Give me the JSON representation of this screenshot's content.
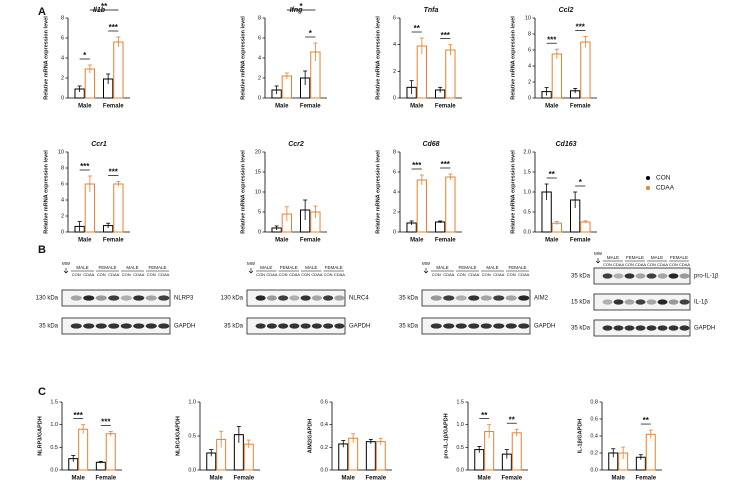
{
  "panel_labels": [
    "A",
    "B",
    "C"
  ],
  "chart_data": [
    {
      "type": "bar",
      "title": "Il1b",
      "italic": true,
      "ylabel": "Relative mRNA expression level",
      "categories": [
        "Male",
        "Female"
      ],
      "ylim": [
        0,
        8
      ],
      "yticks": [
        0,
        2,
        4,
        6,
        8
      ],
      "series": [
        {
          "name": "CON",
          "color": "#000000",
          "values": [
            0.9,
            1.9
          ],
          "errors": [
            0.3,
            0.5
          ]
        },
        {
          "name": "CDAA",
          "color": "#e8802e",
          "values": [
            2.9,
            5.6
          ],
          "errors": [
            0.4,
            0.5
          ]
        }
      ],
      "annotations": [
        "*",
        "***",
        "**"
      ]
    },
    {
      "type": "bar",
      "title": "Ifng",
      "italic": true,
      "ylabel": "Relative mRNA expression level",
      "categories": [
        "Male",
        "Female"
      ],
      "ylim": [
        0,
        8
      ],
      "yticks": [
        0,
        2,
        4,
        6,
        8
      ],
      "series": [
        {
          "name": "CON",
          "color": "#000000",
          "values": [
            0.8,
            2.0
          ],
          "errors": [
            0.4,
            0.7
          ]
        },
        {
          "name": "CDAA",
          "color": "#e8802e",
          "values": [
            2.2,
            4.6
          ],
          "errors": [
            0.3,
            0.9
          ]
        }
      ],
      "annotations": [
        "*",
        "*"
      ]
    },
    {
      "type": "bar",
      "title": "Tnfa",
      "italic": true,
      "ylabel": "Relative mRNA expression level",
      "categories": [
        "Male",
        "Female"
      ],
      "ylim": [
        0,
        6
      ],
      "yticks": [
        0,
        2,
        4,
        6
      ],
      "series": [
        {
          "name": "CON",
          "color": "#000000",
          "values": [
            0.8,
            0.6
          ],
          "errors": [
            0.5,
            0.2
          ]
        },
        {
          "name": "CDAA",
          "color": "#e8802e",
          "values": [
            3.9,
            3.6
          ],
          "errors": [
            0.6,
            0.4
          ]
        }
      ],
      "annotations": [
        "**",
        "***"
      ]
    },
    {
      "type": "bar",
      "title": "Ccl2",
      "italic": true,
      "ylabel": "Relative mRNA expression level",
      "categories": [
        "Male",
        "Female"
      ],
      "ylim": [
        0,
        10
      ],
      "yticks": [
        0,
        2,
        4,
        6,
        8,
        10
      ],
      "series": [
        {
          "name": "CON",
          "color": "#000000",
          "values": [
            0.8,
            0.9
          ],
          "errors": [
            0.5,
            0.3
          ]
        },
        {
          "name": "CDAA",
          "color": "#e8802e",
          "values": [
            5.5,
            7.0
          ],
          "errors": [
            0.6,
            0.7
          ]
        }
      ],
      "annotations": [
        "***",
        "***"
      ]
    },
    {
      "type": "bar",
      "title": "Ccr1",
      "italic": true,
      "ylabel": "Relative mRNA expression level",
      "categories": [
        "Male",
        "Female"
      ],
      "ylim": [
        0,
        10
      ],
      "yticks": [
        0,
        2,
        4,
        6,
        8,
        10
      ],
      "series": [
        {
          "name": "CON",
          "color": "#000000",
          "values": [
            0.7,
            0.8
          ],
          "errors": [
            0.6,
            0.3
          ]
        },
        {
          "name": "CDAA",
          "color": "#e8802e",
          "values": [
            6.0,
            6.0
          ],
          "errors": [
            1.0,
            0.3
          ]
        }
      ],
      "annotations": [
        "***",
        "***"
      ]
    },
    {
      "type": "bar",
      "title": "Ccr2",
      "italic": true,
      "ylabel": "Relative mRNA expression level",
      "categories": [
        "Male",
        "Female"
      ],
      "ylim": [
        0,
        20
      ],
      "yticks": [
        0,
        5,
        10,
        15,
        20
      ],
      "series": [
        {
          "name": "CON",
          "color": "#000000",
          "values": [
            1.0,
            5.5
          ],
          "errors": [
            0.5,
            2.5
          ]
        },
        {
          "name": "CDAA",
          "color": "#e8802e",
          "values": [
            4.5,
            5.0
          ],
          "errors": [
            1.8,
            1.5
          ]
        }
      ],
      "annotations": []
    },
    {
      "type": "bar",
      "title": "Cd68",
      "italic": true,
      "ylabel": "Relative mRNA expression level",
      "categories": [
        "Male",
        "Female"
      ],
      "ylim": [
        0,
        8
      ],
      "yticks": [
        0,
        2,
        4,
        6,
        8
      ],
      "series": [
        {
          "name": "CON",
          "color": "#000000",
          "values": [
            0.9,
            1.0
          ],
          "errors": [
            0.2,
            0.1
          ]
        },
        {
          "name": "CDAA",
          "color": "#e8802e",
          "values": [
            5.2,
            5.5
          ],
          "errors": [
            0.5,
            0.3
          ]
        }
      ],
      "annotations": [
        "***",
        "***"
      ]
    },
    {
      "type": "bar",
      "title": "Cd163",
      "italic": true,
      "ylabel": "Relative mRNA expression level",
      "categories": [
        "Male",
        "Female"
      ],
      "ylim": [
        0,
        2
      ],
      "yticks": [
        {
          "value": 0,
          "label": "0.0"
        },
        0.5,
        {
          "value": 1,
          "label": "1.0"
        },
        1.5,
        {
          "value": 2,
          "label": "2.0"
        }
      ],
      "series": [
        {
          "name": "CON",
          "color": "#000000",
          "values": [
            1.0,
            0.8
          ],
          "errors": [
            0.2,
            0.2
          ]
        },
        {
          "name": "CDAA",
          "color": "#e8802e",
          "values": [
            0.22,
            0.25
          ],
          "errors": [
            0.04,
            0.03
          ]
        }
      ],
      "annotations": [
        "**",
        "*"
      ]
    },
    {
      "type": "bar",
      "title": "",
      "ylabel": "NLRP3/GAPDH",
      "categories": [
        "Male",
        "Female"
      ],
      "ylim": [
        0,
        1.5
      ],
      "yticks": [
        {
          "value": 0,
          "label": "0.0"
        },
        0.5,
        {
          "value": 1,
          "label": "1.0"
        },
        1.5
      ],
      "series": [
        {
          "name": "CON",
          "color": "#000000",
          "values": [
            0.25,
            0.17
          ],
          "errors": [
            0.07,
            0.02
          ]
        },
        {
          "name": "CDAA",
          "color": "#e8802e",
          "values": [
            0.9,
            0.8
          ],
          "errors": [
            0.1,
            0.05
          ]
        }
      ],
      "annotations": [
        "***",
        "***"
      ]
    },
    {
      "type": "bar",
      "title": "",
      "ylabel": "NLRC4/GAPDH",
      "categories": [
        "Male",
        "Female"
      ],
      "ylim": [
        0,
        1
      ],
      "yticks": [
        {
          "value": 0,
          "label": "0.0"
        },
        0.5,
        {
          "value": 1,
          "label": "1.0"
        }
      ],
      "series": [
        {
          "name": "CON",
          "color": "#000000",
          "values": [
            0.25,
            0.52
          ],
          "errors": [
            0.05,
            0.12
          ]
        },
        {
          "name": "CDAA",
          "color": "#e8802e",
          "values": [
            0.45,
            0.38
          ],
          "errors": [
            0.12,
            0.06
          ]
        }
      ],
      "annotations": []
    },
    {
      "type": "bar",
      "title": "",
      "ylabel": "AIM2/GAPDH",
      "categories": [
        "Male",
        "Female"
      ],
      "ylim": [
        0,
        0.6
      ],
      "yticks": [
        {
          "value": 0,
          "label": "0.0"
        },
        0.2,
        0.4,
        0.6
      ],
      "series": [
        {
          "name": "CON",
          "color": "#000000",
          "values": [
            0.23,
            0.25
          ],
          "errors": [
            0.03,
            0.02
          ]
        },
        {
          "name": "CDAA",
          "color": "#e8802e",
          "values": [
            0.28,
            0.25
          ],
          "errors": [
            0.04,
            0.03
          ]
        }
      ],
      "annotations": []
    },
    {
      "type": "bar",
      "title": "",
      "ylabel": "pro-IL-1β/GAPDH",
      "categories": [
        "Male",
        "Female"
      ],
      "ylim": [
        0,
        1.5
      ],
      "yticks": [
        {
          "value": 0,
          "label": "0.0"
        },
        0.5,
        {
          "value": 1,
          "label": "1.0"
        },
        1.5
      ],
      "series": [
        {
          "name": "CON",
          "color": "#000000",
          "values": [
            0.45,
            0.35
          ],
          "errors": [
            0.07,
            0.1
          ]
        },
        {
          "name": "CDAA",
          "color": "#e8802e",
          "values": [
            0.85,
            0.82
          ],
          "errors": [
            0.15,
            0.08
          ]
        }
      ],
      "annotations": [
        "**",
        "**"
      ]
    },
    {
      "type": "bar",
      "title": "",
      "ylabel": "IL-1β/GAPDH",
      "categories": [
        "Male",
        "Female"
      ],
      "ylim": [
        0,
        0.8
      ],
      "yticks": [
        {
          "value": 0,
          "label": "0.0"
        },
        0.2,
        0.4,
        0.6,
        0.8
      ],
      "series": [
        {
          "name": "CON",
          "color": "#000000",
          "values": [
            0.2,
            0.15
          ],
          "errors": [
            0.05,
            0.03
          ]
        },
        {
          "name": "CDAA",
          "color": "#e8802e",
          "values": [
            0.2,
            0.42
          ],
          "errors": [
            0.07,
            0.05
          ]
        }
      ],
      "annotations": [
        "**"
      ]
    }
  ],
  "blots": [
    {
      "mw": "MW",
      "groups": [
        "MALE",
        "FEMALE",
        "MALE",
        "FEMALE"
      ],
      "lanes": [
        "CON",
        "CDAA",
        "CON",
        "CDAA",
        "CON",
        "CDAA",
        "CON",
        "CDAA"
      ],
      "rows": [
        {
          "kda": "130 kDa",
          "protein": "NLRP3"
        },
        {
          "kda": "35 kDa",
          "protein": "GAPDH"
        }
      ]
    },
    {
      "mw": "MW",
      "groups": [
        "MALE",
        "FEMALE",
        "MALE",
        "FEMALE"
      ],
      "lanes": [
        "CON",
        "CDAA",
        "CON",
        "CDAA",
        "CON",
        "CDAA",
        "CON",
        "CDAA"
      ],
      "rows": [
        {
          "kda": "130 kDa",
          "protein": "NLRC4"
        },
        {
          "kda": "35 kDa",
          "protein": "GAPDH"
        }
      ]
    },
    {
      "mw": "MW",
      "groups": [
        "MALE",
        "FEMALE",
        "MALE",
        "FEMALE"
      ],
      "lanes": [
        "CON",
        "CDAA",
        "CON",
        "CDAA",
        "CON",
        "CDAA",
        "CON",
        "CDAA"
      ],
      "rows": [
        {
          "kda": "35 kDa",
          "protein": "AIM2"
        },
        {
          "kda": "35 kDa",
          "protein": "GAPDH"
        }
      ]
    },
    {
      "mw": "MW",
      "groups": [
        "MALE",
        "FEMALE",
        "MALE",
        "FEMALE"
      ],
      "lanes": [
        "CON",
        "CDAA",
        "CON",
        "CDAA",
        "CON",
        "CDAA",
        "CON",
        "CDAA"
      ],
      "rows": [
        {
          "kda": "35 kDa",
          "protein": "pro-IL-1β"
        },
        {
          "kda": "15 kDa",
          "protein": "IL-1β"
        },
        {
          "kda": "35 kDa",
          "protein": "GAPDH"
        }
      ]
    }
  ]
}
